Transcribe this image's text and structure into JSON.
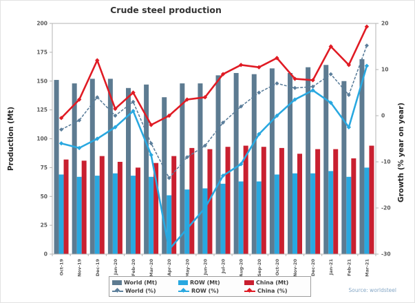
{
  "page": {
    "source_note": "Source: worldsteel"
  },
  "chart_data": {
    "type": "bar",
    "subtype": "grouped-bars-with-lines-combo",
    "title": "Crude steel production",
    "categories": [
      "Oct-19",
      "Nov-19",
      "Dec-19",
      "Jan-20",
      "Feb-20",
      "Mar-20",
      "Apr-20",
      "May-20",
      "Jun-20",
      "Jul-20",
      "Aug-20",
      "Sep-20",
      "Oct-20",
      "Nov-20",
      "Dec-20",
      "Jan-21",
      "Feb-21",
      "Mar-21"
    ],
    "bar_series": [
      {
        "name": "World (Mt)",
        "color": "#5d7b91",
        "axis": "left",
        "values": [
          151,
          148,
          152,
          152,
          144,
          147,
          136,
          148,
          148,
          155,
          157,
          156,
          161,
          157,
          162,
          164,
          150,
          169
        ]
      },
      {
        "name": "ROW (Mt)",
        "color": "#29a8e0",
        "axis": "left",
        "values": [
          69,
          67,
          68,
          70,
          68,
          67,
          51,
          56,
          57,
          61,
          63,
          63,
          69,
          70,
          70,
          72,
          67,
          75
        ]
      },
      {
        "name": "China (Mt)",
        "color": "#c92030",
        "axis": "left",
        "values": [
          82,
          81,
          85,
          80,
          75,
          79,
          85,
          92,
          91,
          93,
          94,
          93,
          92,
          87,
          91,
          91,
          83,
          94
        ]
      }
    ],
    "line_series": [
      {
        "name": "World (%)",
        "color": "#5b7e9b",
        "style": "dashed",
        "axis": "right",
        "values": [
          -3,
          -1,
          4,
          0,
          3,
          -6,
          -13.5,
          -9,
          -6.5,
          -1.5,
          2,
          5,
          7,
          6,
          6.3,
          9,
          4.5,
          15.2
        ]
      },
      {
        "name": "ROW (%)",
        "color": "#29a8e0",
        "style": "solid",
        "axis": "right",
        "values": [
          -6,
          -7,
          -5,
          -2.5,
          1,
          -8.5,
          -29,
          -24.5,
          -20,
          -13,
          -10.5,
          -4,
          0,
          3.5,
          5.5,
          2.8,
          -2.5,
          10.8
        ]
      },
      {
        "name": "China (%)",
        "color": "#e01b24",
        "style": "solid",
        "axis": "right",
        "values": [
          -0.5,
          3.5,
          12,
          1.5,
          5,
          -2,
          0,
          3.5,
          4,
          9,
          11,
          10.5,
          12.5,
          8,
          7.7,
          15,
          11,
          19.3
        ]
      }
    ],
    "left_axis": {
      "label": "Production (Mt)",
      "min": 0,
      "max": 200,
      "step": 25,
      "tick_labels": [
        "0",
        "25",
        "50",
        "75",
        "100",
        "125",
        "150",
        "175",
        "200"
      ]
    },
    "right_axis": {
      "label": "Growth (% year on year)",
      "min": -30,
      "max": 20,
      "step": 10,
      "tick_labels": [
        "-30",
        "-20",
        "-10",
        "0",
        "10",
        "20"
      ]
    },
    "legend_position": "bottom",
    "grid": false,
    "plot_frame_color": "#b3b3b3",
    "tick_label_color": "#595959",
    "title_color": "#333333"
  }
}
